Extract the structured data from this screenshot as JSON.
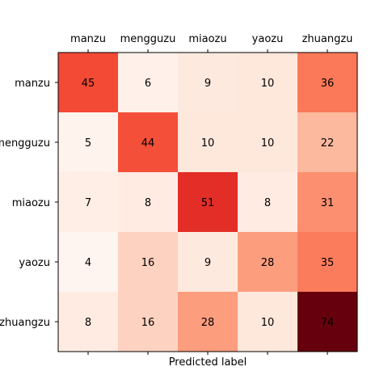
{
  "chart_data": {
    "type": "heatmap",
    "title": "",
    "xlabel": "Predicted label",
    "ylabel": "",
    "x_categories": [
      "manzu",
      "mengguzu",
      "miaozu",
      "yaozu",
      "zhuangzu"
    ],
    "y_categories": [
      "manzu",
      "mengguzu",
      "miaozu",
      "yaozu",
      "zhuangzu"
    ],
    "matrix": [
      [
        45,
        6,
        9,
        10,
        36
      ],
      [
        5,
        44,
        10,
        10,
        22
      ],
      [
        7,
        8,
        51,
        8,
        31
      ],
      [
        4,
        16,
        9,
        28,
        35
      ],
      [
        8,
        16,
        28,
        10,
        74
      ]
    ],
    "colormap": "Reds",
    "value_range": [
      4,
      74
    ],
    "x_tick_labels_position": "top",
    "grid": false
  }
}
